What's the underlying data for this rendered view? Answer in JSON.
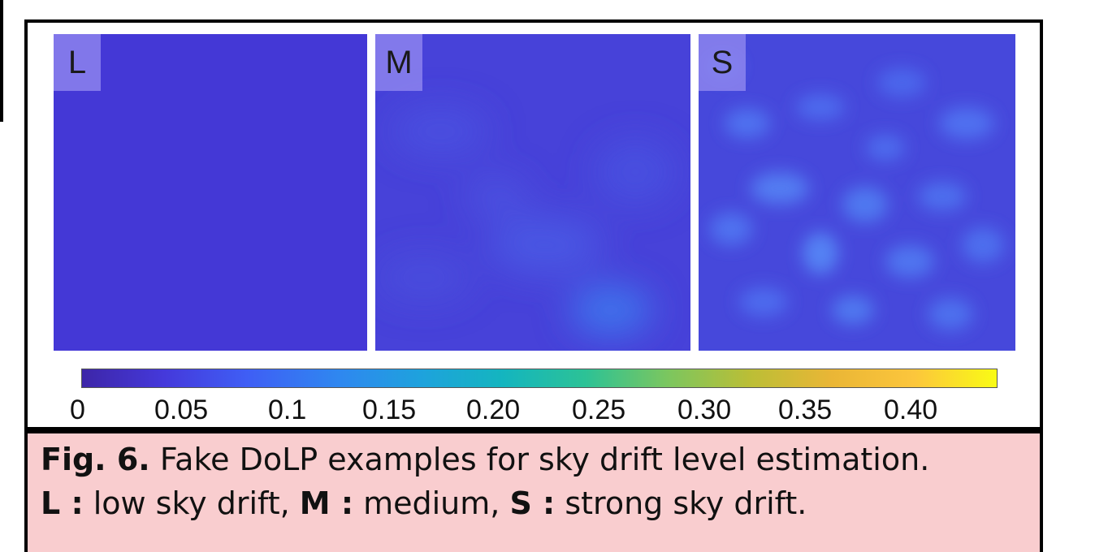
{
  "panels": [
    {
      "label": "L",
      "base_color": "#4438d6",
      "texture": "none"
    },
    {
      "label": "M",
      "base_color": "#4a46dc",
      "texture": "soft-blobs"
    },
    {
      "label": "S",
      "base_color": "#4a4ce0",
      "texture": "strong-blobs"
    }
  ],
  "colorbar": {
    "colormap": "parula",
    "range": [
      0,
      0.43
    ],
    "tick_labels": [
      "0",
      "0.05",
      "0.1",
      "0.15",
      "0.20",
      "0.25",
      "0.30",
      "0.35",
      "0.40"
    ]
  },
  "caption": {
    "fig_label": "Fig. 6.",
    "line1": " Fake DoLP examples for sky drift level estimation.",
    "l_key": "L :",
    "l_text": " low sky drift, ",
    "m_key": "M :",
    "m_text": " medium, ",
    "s_key": "S :",
    "s_text": " strong sky drift."
  }
}
